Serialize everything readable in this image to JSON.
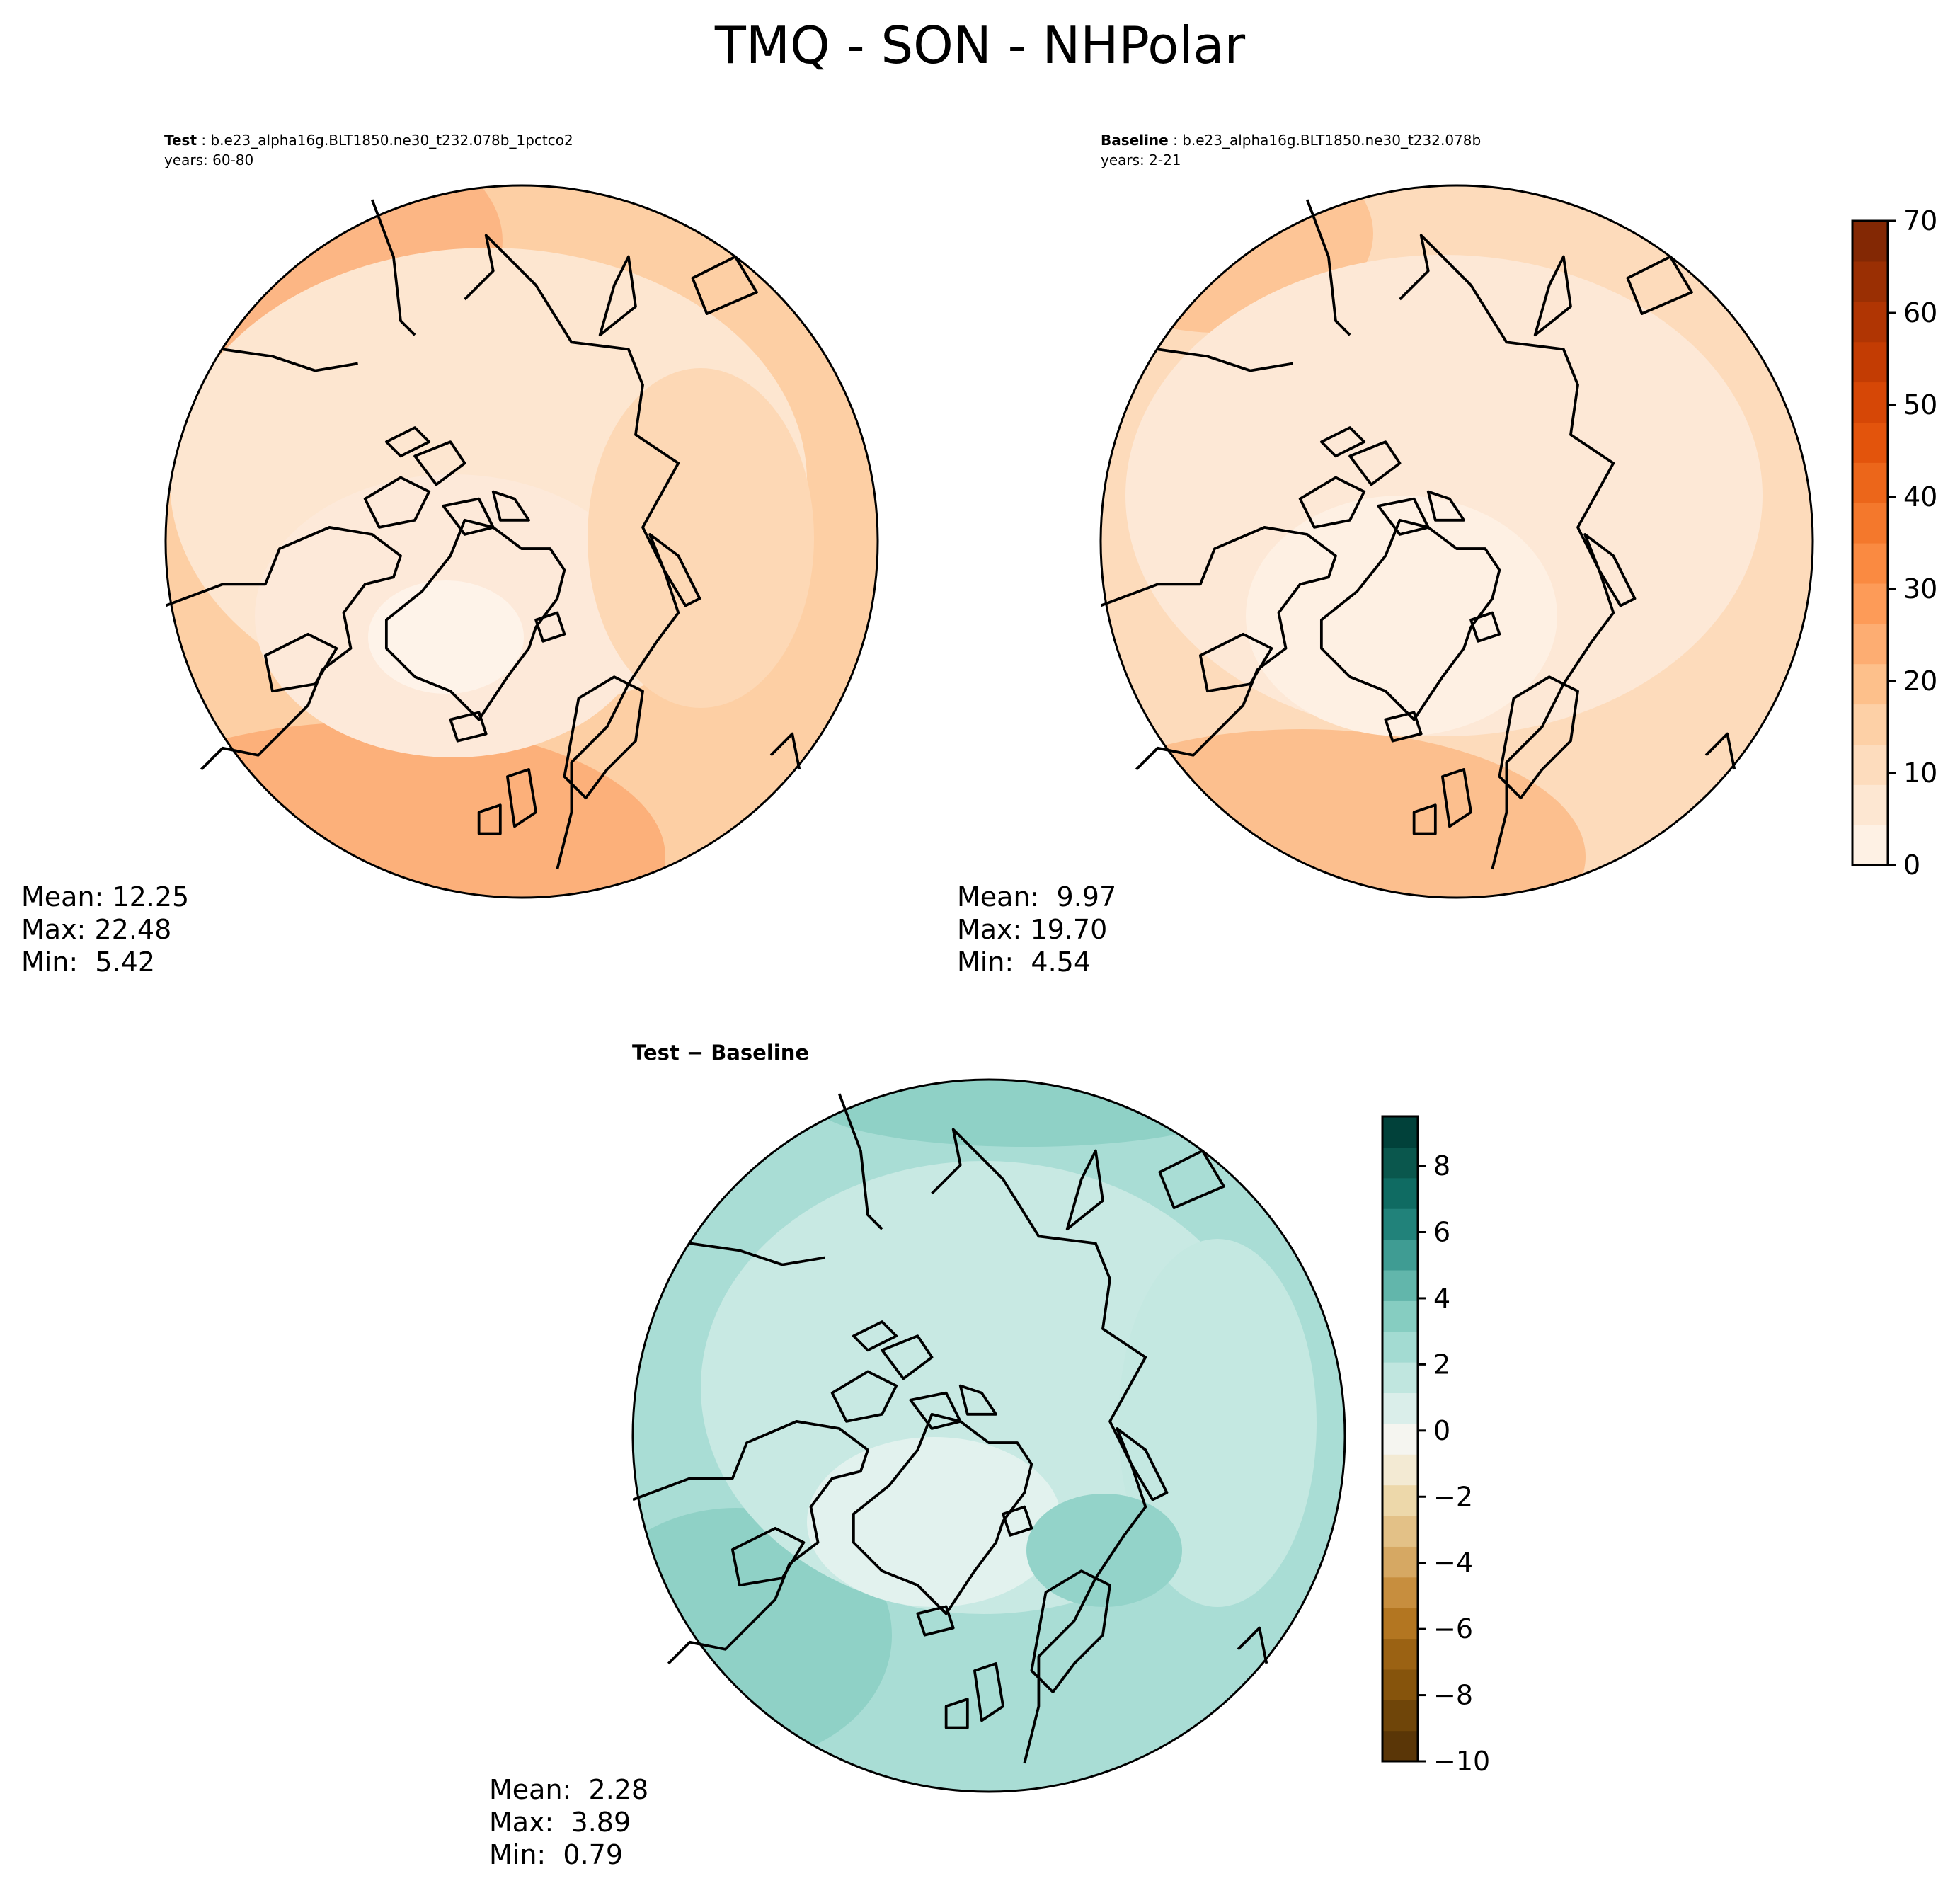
{
  "title": "TMQ - SON - NHPolar",
  "colors": {
    "test_ramp": [
      "#fef1e4",
      "#fde7d2",
      "#fddcbd",
      "#fdd0a6",
      "#fdc08b",
      "#fdad72",
      "#fd9b58",
      "#fa8a41",
      "#f4782c",
      "#ec661a",
      "#e3540c",
      "#d64706",
      "#c33c03",
      "#b03503",
      "#9a2f03",
      "#832804"
    ],
    "diff_ramp": [
      "#5a3607",
      "#6f4509",
      "#86540c",
      "#9b6213",
      "#b37621",
      "#c78e3e",
      "#d6a863",
      "#e3c187",
      "#edd8aa",
      "#f3ead3",
      "#f5f5f0",
      "#daeeea",
      "#c0e6df",
      "#a3dbd2",
      "#86cdc1",
      "#62b6ab",
      "#3f9c93",
      "#21827a",
      "#0f6b62",
      "#0a574d",
      "#01413a"
    ]
  },
  "panels": {
    "test": {
      "label": "Test",
      "case": "b.e23_alpha16g.BLT1850.ne30_t232.078b_1pctco2",
      "years": "years: 60-80",
      "stats": {
        "mean_label": "Mean:",
        "mean": "12.25",
        "max_label": "Max:",
        "max": "22.48",
        "min_label": "Min:",
        "min": "5.42"
      }
    },
    "baseline": {
      "label": "Baseline",
      "case": "b.e23_alpha16g.BLT1850.ne30_t232.078b",
      "years": "years: 2-21",
      "stats": {
        "mean_label": "Mean:",
        "mean": "9.97",
        "max_label": "Max:",
        "max": "19.70",
        "min_label": "Min:",
        "min": "4.54"
      }
    },
    "diff": {
      "label": "Test − Baseline",
      "stats": {
        "mean_label": "Mean:",
        "mean": "2.28",
        "max_label": "Max:",
        "max": "3.89",
        "min_label": "Min:",
        "min": "0.79"
      }
    }
  },
  "colorbars": {
    "top": {
      "min": 0,
      "max": 70,
      "ticks": [
        "70",
        "60",
        "50",
        "40",
        "30",
        "20",
        "10",
        "0"
      ]
    },
    "diff": {
      "min": -10,
      "max": 9.5,
      "ticks": [
        "8",
        "6",
        "4",
        "2",
        "0",
        "−2",
        "−4",
        "−6",
        "−8",
        "−10"
      ]
    }
  }
}
